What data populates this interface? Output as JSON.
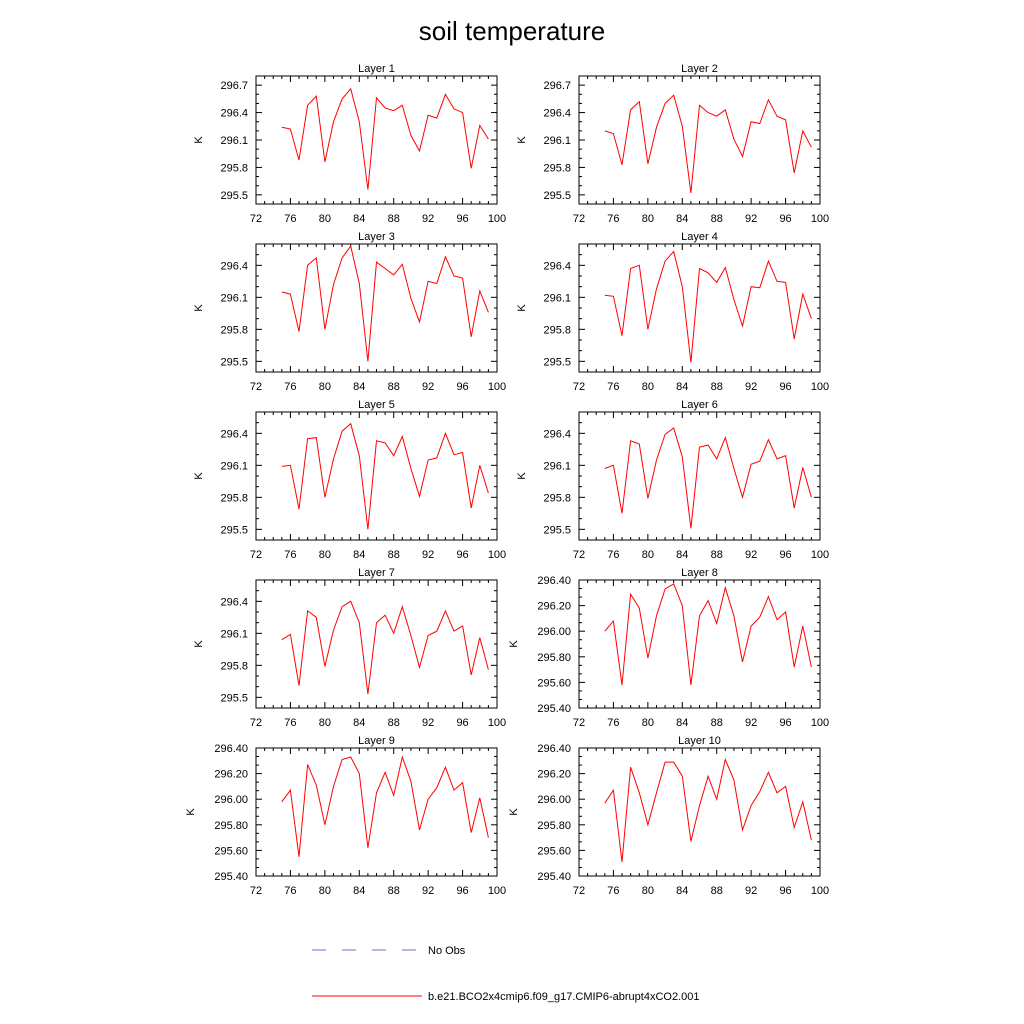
{
  "title": "soil temperature",
  "legend": {
    "placement": "bottom",
    "entries": [
      {
        "label": "No Obs",
        "color": "#6b6bd6",
        "style": "dashed"
      },
      {
        "label": "b.e21.BCO2x4cmip6.f09_g17.CMIP6-abrupt4xCO2.001",
        "color": "#ff0000",
        "style": "solid"
      }
    ]
  },
  "chart_data": [
    {
      "type": "line",
      "title": "Layer 1",
      "ylabel": "K",
      "xlim": [
        72,
        100
      ],
      "xticks": [
        72,
        76,
        80,
        84,
        88,
        92,
        96,
        100
      ],
      "ylim": [
        295.4,
        296.8
      ],
      "yticks": [
        "295.5",
        "295.8",
        "296.1",
        "296.4",
        "296.7"
      ],
      "series": [
        {
          "color": "#ff0000",
          "x": [
            75,
            76,
            77,
            78,
            79,
            80,
            81,
            82,
            83,
            84,
            85,
            86,
            87,
            88,
            89,
            90,
            91,
            92,
            93,
            94,
            95,
            96,
            97,
            98,
            99
          ],
          "values": [
            296.24,
            296.22,
            295.88,
            296.48,
            296.58,
            295.86,
            296.3,
            296.55,
            296.66,
            296.3,
            295.56,
            296.56,
            296.45,
            296.42,
            296.48,
            296.15,
            295.98,
            296.37,
            296.34,
            296.6,
            296.44,
            296.4,
            295.79,
            296.26,
            296.11
          ]
        }
      ]
    },
    {
      "type": "line",
      "title": "Layer 2",
      "ylabel": "K",
      "xlim": [
        72,
        100
      ],
      "xticks": [
        72,
        76,
        80,
        84,
        88,
        92,
        96,
        100
      ],
      "ylim": [
        295.4,
        296.8
      ],
      "yticks": [
        "295.5",
        "295.8",
        "296.1",
        "296.4",
        "296.7"
      ],
      "series": [
        {
          "color": "#ff0000",
          "x": [
            75,
            76,
            77,
            78,
            79,
            80,
            81,
            82,
            83,
            84,
            85,
            86,
            87,
            88,
            89,
            90,
            91,
            92,
            93,
            94,
            95,
            96,
            97,
            98,
            99
          ],
          "values": [
            296.2,
            296.17,
            295.83,
            296.43,
            296.52,
            295.84,
            296.24,
            296.5,
            296.59,
            296.25,
            295.52,
            296.48,
            296.4,
            296.36,
            296.43,
            296.11,
            295.92,
            296.3,
            296.28,
            296.54,
            296.36,
            296.32,
            295.74,
            296.2,
            296.02
          ]
        }
      ]
    },
    {
      "type": "line",
      "title": "Layer 3",
      "ylabel": "K",
      "xlim": [
        72,
        100
      ],
      "xticks": [
        72,
        76,
        80,
        84,
        88,
        92,
        96,
        100
      ],
      "ylim": [
        295.4,
        296.6
      ],
      "yticks": [
        "295.5",
        "295.8",
        "296.1",
        "296.4"
      ],
      "series": [
        {
          "color": "#ff0000",
          "x": [
            75,
            76,
            77,
            78,
            79,
            80,
            81,
            82,
            83,
            84,
            85,
            86,
            87,
            88,
            89,
            90,
            91,
            92,
            93,
            94,
            95,
            96,
            97,
            98,
            99
          ],
          "values": [
            296.15,
            296.13,
            295.78,
            296.4,
            296.47,
            295.8,
            296.22,
            296.47,
            296.58,
            296.23,
            295.5,
            296.43,
            296.37,
            296.31,
            296.41,
            296.09,
            295.87,
            296.25,
            296.23,
            296.48,
            296.3,
            296.28,
            295.73,
            296.16,
            295.96
          ]
        }
      ]
    },
    {
      "type": "line",
      "title": "Layer 4",
      "ylabel": "K",
      "xlim": [
        72,
        100
      ],
      "xticks": [
        72,
        76,
        80,
        84,
        88,
        92,
        96,
        100
      ],
      "ylim": [
        295.4,
        296.6
      ],
      "yticks": [
        "295.5",
        "295.8",
        "296.1",
        "296.4"
      ],
      "series": [
        {
          "color": "#ff0000",
          "x": [
            75,
            76,
            77,
            78,
            79,
            80,
            81,
            82,
            83,
            84,
            85,
            86,
            87,
            88,
            89,
            90,
            91,
            92,
            93,
            94,
            95,
            96,
            97,
            98,
            99
          ],
          "values": [
            296.12,
            296.11,
            295.74,
            296.37,
            296.4,
            295.8,
            296.18,
            296.44,
            296.53,
            296.2,
            295.49,
            296.37,
            296.33,
            296.24,
            296.38,
            296.08,
            295.83,
            296.2,
            296.19,
            296.44,
            296.25,
            296.24,
            295.71,
            296.13,
            295.9
          ]
        }
      ]
    },
    {
      "type": "line",
      "title": "Layer 5",
      "ylabel": "K",
      "xlim": [
        72,
        100
      ],
      "xticks": [
        72,
        76,
        80,
        84,
        88,
        92,
        96,
        100
      ],
      "ylim": [
        295.4,
        296.6
      ],
      "yticks": [
        "295.5",
        "295.8",
        "296.1",
        "296.4"
      ],
      "series": [
        {
          "color": "#ff0000",
          "x": [
            75,
            76,
            77,
            78,
            79,
            80,
            81,
            82,
            83,
            84,
            85,
            86,
            87,
            88,
            89,
            90,
            91,
            92,
            93,
            94,
            95,
            96,
            97,
            98,
            99
          ],
          "values": [
            296.09,
            296.1,
            295.69,
            296.35,
            296.36,
            295.8,
            296.16,
            296.42,
            296.49,
            296.19,
            295.5,
            296.33,
            296.31,
            296.19,
            296.37,
            296.07,
            295.81,
            296.15,
            296.17,
            296.4,
            296.2,
            296.22,
            295.7,
            296.1,
            295.84
          ]
        }
      ]
    },
    {
      "type": "line",
      "title": "Layer 6",
      "ylabel": "K",
      "xlim": [
        72,
        100
      ],
      "xticks": [
        72,
        76,
        80,
        84,
        88,
        92,
        96,
        100
      ],
      "ylim": [
        295.4,
        296.6
      ],
      "yticks": [
        "295.5",
        "295.8",
        "296.1",
        "296.4"
      ],
      "series": [
        {
          "color": "#ff0000",
          "x": [
            75,
            76,
            77,
            78,
            79,
            80,
            81,
            82,
            83,
            84,
            85,
            86,
            87,
            88,
            89,
            90,
            91,
            92,
            93,
            94,
            95,
            96,
            97,
            98,
            99
          ],
          "values": [
            296.07,
            296.1,
            295.65,
            296.33,
            296.3,
            295.79,
            296.15,
            296.39,
            296.45,
            296.18,
            295.51,
            296.27,
            296.29,
            296.16,
            296.36,
            296.07,
            295.8,
            296.11,
            296.14,
            296.34,
            296.16,
            296.19,
            295.7,
            296.08,
            295.8
          ]
        }
      ]
    },
    {
      "type": "line",
      "title": "Layer 7",
      "ylabel": "K",
      "xlim": [
        72,
        100
      ],
      "xticks": [
        72,
        76,
        80,
        84,
        88,
        92,
        96,
        100
      ],
      "ylim": [
        295.4,
        296.6
      ],
      "yticks": [
        "295.5",
        "295.8",
        "296.1",
        "296.4"
      ],
      "series": [
        {
          "color": "#ff0000",
          "x": [
            75,
            76,
            77,
            78,
            79,
            80,
            81,
            82,
            83,
            84,
            85,
            86,
            87,
            88,
            89,
            90,
            91,
            92,
            93,
            94,
            95,
            96,
            97,
            98,
            99
          ],
          "values": [
            296.04,
            296.09,
            295.61,
            296.31,
            296.25,
            295.79,
            296.13,
            296.35,
            296.4,
            296.2,
            295.53,
            296.2,
            296.27,
            296.1,
            296.35,
            296.08,
            295.78,
            296.08,
            296.12,
            296.31,
            296.12,
            296.17,
            295.71,
            296.06,
            295.76
          ]
        }
      ]
    },
    {
      "type": "line",
      "title": "Layer 8",
      "ylabel": "K",
      "xlim": [
        72,
        100
      ],
      "xticks": [
        72,
        76,
        80,
        84,
        88,
        92,
        96,
        100
      ],
      "ylim": [
        295.4,
        296.4
      ],
      "yticks": [
        "295.40",
        "295.60",
        "295.80",
        "296.00",
        "296.20",
        "296.40"
      ],
      "series": [
        {
          "color": "#ff0000",
          "x": [
            75,
            76,
            77,
            78,
            79,
            80,
            81,
            82,
            83,
            84,
            85,
            86,
            87,
            88,
            89,
            90,
            91,
            92,
            93,
            94,
            95,
            96,
            97,
            98,
            99
          ],
          "values": [
            296.0,
            296.08,
            295.58,
            296.29,
            296.18,
            295.79,
            296.12,
            296.33,
            296.37,
            296.2,
            295.58,
            296.12,
            296.24,
            296.06,
            296.34,
            296.12,
            295.76,
            296.04,
            296.11,
            296.27,
            296.09,
            296.15,
            295.72,
            296.04,
            295.72
          ]
        }
      ]
    },
    {
      "type": "line",
      "title": "Layer 9",
      "ylabel": "K",
      "xlim": [
        72,
        100
      ],
      "xticks": [
        72,
        76,
        80,
        84,
        88,
        92,
        96,
        100
      ],
      "ylim": [
        295.4,
        296.4
      ],
      "yticks": [
        "295.40",
        "295.60",
        "295.80",
        "296.00",
        "296.20",
        "296.40"
      ],
      "series": [
        {
          "color": "#ff0000",
          "x": [
            75,
            76,
            77,
            78,
            79,
            80,
            81,
            82,
            83,
            84,
            85,
            86,
            87,
            88,
            89,
            90,
            91,
            92,
            93,
            94,
            95,
            96,
            97,
            98,
            99
          ],
          "values": [
            295.98,
            296.07,
            295.55,
            296.27,
            296.11,
            295.8,
            296.1,
            296.31,
            296.33,
            296.2,
            295.62,
            296.05,
            296.21,
            296.03,
            296.33,
            296.14,
            295.76,
            296.0,
            296.09,
            296.25,
            296.07,
            296.13,
            295.74,
            296.01,
            295.7
          ]
        }
      ]
    },
    {
      "type": "line",
      "title": "Layer 10",
      "ylabel": "K",
      "xlim": [
        72,
        100
      ],
      "xticks": [
        72,
        76,
        80,
        84,
        88,
        92,
        96,
        100
      ],
      "ylim": [
        295.4,
        296.4
      ],
      "yticks": [
        "295.40",
        "295.60",
        "295.80",
        "296.00",
        "296.20",
        "296.40"
      ],
      "series": [
        {
          "color": "#ff0000",
          "x": [
            75,
            76,
            77,
            78,
            79,
            80,
            81,
            82,
            83,
            84,
            85,
            86,
            87,
            88,
            89,
            90,
            91,
            92,
            93,
            94,
            95,
            96,
            97,
            98,
            99
          ],
          "values": [
            295.97,
            296.07,
            295.51,
            296.25,
            296.05,
            295.8,
            296.05,
            296.29,
            296.29,
            296.18,
            295.67,
            295.95,
            296.18,
            296.0,
            296.31,
            296.15,
            295.76,
            295.95,
            296.06,
            296.21,
            296.05,
            296.1,
            295.78,
            295.98,
            295.68
          ]
        }
      ]
    }
  ]
}
